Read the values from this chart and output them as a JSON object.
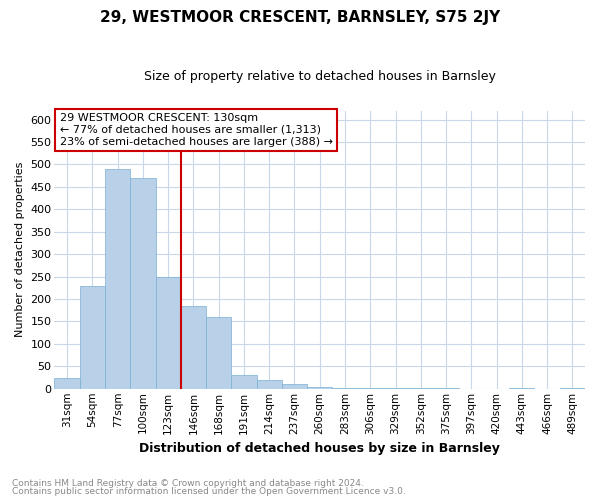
{
  "title": "29, WESTMOOR CRESCENT, BARNSLEY, S75 2JY",
  "subtitle": "Size of property relative to detached houses in Barnsley",
  "xlabel": "Distribution of detached houses by size in Barnsley",
  "ylabel": "Number of detached properties",
  "footnote1": "Contains HM Land Registry data © Crown copyright and database right 2024.",
  "footnote2": "Contains public sector information licensed under the Open Government Licence v3.0.",
  "annotation_line1": "29 WESTMOOR CRESCENT: 130sqm",
  "annotation_line2": "← 77% of detached houses are smaller (1,313)",
  "annotation_line3": "23% of semi-detached houses are larger (388) →",
  "categories": [
    "31sqm",
    "54sqm",
    "77sqm",
    "100sqm",
    "123sqm",
    "146sqm",
    "168sqm",
    "191sqm",
    "214sqm",
    "237sqm",
    "260sqm",
    "283sqm",
    "306sqm",
    "329sqm",
    "352sqm",
    "375sqm",
    "397sqm",
    "420sqm",
    "443sqm",
    "466sqm",
    "489sqm"
  ],
  "values": [
    25,
    230,
    490,
    470,
    250,
    185,
    160,
    30,
    20,
    10,
    5,
    2,
    1,
    1,
    1,
    1,
    0,
    0,
    1,
    0,
    1
  ],
  "bar_color": "#b8d0e8",
  "bar_edge_color": "#7aafd4",
  "red_line_after_index": 4,
  "ylim": [
    0,
    620
  ],
  "yticks": [
    0,
    50,
    100,
    150,
    200,
    250,
    300,
    350,
    400,
    450,
    500,
    550,
    600
  ],
  "background_color": "#ffffff",
  "grid_color": "#c8d8e8",
  "annotation_box_color": "#ffffff",
  "annotation_box_edge": "#cc0000",
  "red_line_color": "#cc0000",
  "title_fontsize": 11,
  "subtitle_fontsize": 9,
  "ylabel_fontsize": 8,
  "xlabel_fontsize": 9,
  "tick_fontsize": 8,
  "xtick_fontsize": 7.5,
  "footnote_fontsize": 6.5,
  "footnote_color": "#888888"
}
